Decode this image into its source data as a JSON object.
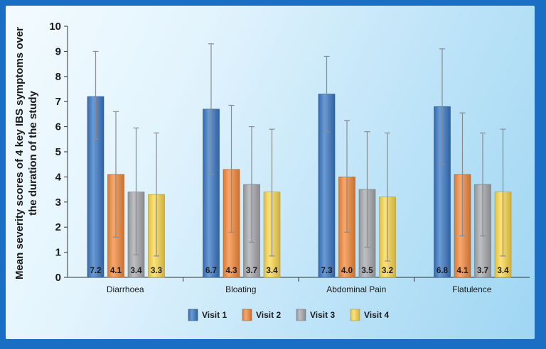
{
  "chart_data": {
    "type": "bar",
    "ylabel": "Mean severity scores of 4 key IBS symptoms over the duration of the study",
    "ylabel_lines": [
      "Mean severity scores of 4 key IBS symptoms over",
      "the duration of the study"
    ],
    "xlabel": "",
    "ylim": [
      0,
      10
    ],
    "yticks": [
      "0",
      "1",
      "2",
      "3",
      "4",
      "5",
      "6",
      "7",
      "8",
      "9",
      "10"
    ],
    "grid": false,
    "legend_position": "bottom-center",
    "categories": [
      "Diarrhoea",
      "Bloating",
      "Abdominal Pain",
      "Flatulence"
    ],
    "series": [
      {
        "name": "Visit 1",
        "color": "#3a78c6",
        "values": [
          7.2,
          6.7,
          7.3,
          6.8
        ],
        "labels": [
          "7.2",
          "6.7",
          "7.3",
          "6.8"
        ],
        "err_low": [
          5.5,
          4.1,
          5.8,
          4.5
        ],
        "err_high": [
          9.0,
          9.3,
          8.8,
          9.1
        ]
      },
      {
        "name": "Visit 2",
        "color": "#f58a3c",
        "values": [
          4.1,
          4.3,
          4.0,
          4.1
        ],
        "labels": [
          "4.1",
          "4.3",
          "4.0",
          "4.1"
        ],
        "err_low": [
          1.6,
          1.8,
          1.8,
          1.65
        ],
        "err_high": [
          6.6,
          6.85,
          6.25,
          6.55
        ]
      },
      {
        "name": "Visit 3",
        "color": "#a7a9ad",
        "values": [
          3.4,
          3.7,
          3.5,
          3.7
        ],
        "labels": [
          "3.4",
          "3.7",
          "3.5",
          "3.7"
        ],
        "err_low": [
          0.9,
          1.4,
          1.2,
          1.65
        ],
        "err_high": [
          5.95,
          6.0,
          5.8,
          5.75
        ]
      },
      {
        "name": "Visit 4",
        "color": "#fbd84e",
        "values": [
          3.3,
          3.4,
          3.2,
          3.4
        ],
        "labels": [
          "3.3",
          "3.4",
          "3.2",
          "3.4"
        ],
        "err_low": [
          0.85,
          0.85,
          0.65,
          0.85
        ],
        "err_high": [
          5.75,
          5.9,
          5.75,
          5.9
        ]
      }
    ]
  }
}
